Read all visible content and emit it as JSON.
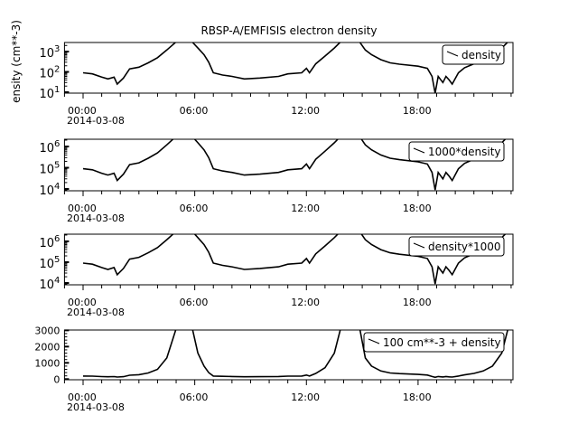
{
  "figure": {
    "title": "RBSP-A/EMFISIS  electron density",
    "ylabel_visible": "ensity (cm**-3)"
  },
  "chart_data": [
    {
      "type": "line",
      "yscale": "log",
      "ylim": [
        9,
        2800
      ],
      "xlim": [
        "-01:00",
        "23:06"
      ],
      "x_tick_labels": [
        "00:00",
        "06:00",
        "12:00",
        "18:00"
      ],
      "x_date_label": "2014-03-08",
      "y_tick_labels": [
        "10^1",
        "10^2",
        "10^3"
      ],
      "legend": {
        "position": "top-right",
        "label": "density"
      },
      "series": [
        {
          "name": "density",
          "x": [
            "00:00",
            "00:30",
            "01:00",
            "01:20",
            "01:40",
            "01:50",
            "02:10",
            "02:30",
            "03:00",
            "03:30",
            "04:00",
            "04:30",
            "05:00",
            "05:50",
            "06:10",
            "06:30",
            "06:45",
            "07:00",
            "07:30",
            "08:00",
            "08:40",
            "09:30",
            "10:30",
            "11:00",
            "11:45",
            "12:00",
            "12:10",
            "12:30",
            "13:00",
            "13:30",
            "13:50",
            "14:50",
            "15:10",
            "15:30",
            "16:00",
            "16:30",
            "17:00",
            "18:00",
            "18:30",
            "18:45",
            "18:55",
            "19:05",
            "19:20",
            "19:30",
            "19:40",
            "19:50",
            "20:10",
            "20:30",
            "21:00",
            "21:30",
            "22:00",
            "22:30",
            "22:50"
          ],
          "y": [
            90,
            80,
            55,
            45,
            55,
            25,
            50,
            140,
            170,
            280,
            500,
            1200,
            3000,
            3200,
            1500,
            700,
            300,
            90,
            70,
            60,
            45,
            50,
            60,
            80,
            90,
            150,
            90,
            250,
            600,
            1500,
            3000,
            3200,
            1200,
            700,
            400,
            280,
            240,
            190,
            150,
            60,
            9,
            60,
            30,
            60,
            40,
            25,
            90,
            160,
            250,
            400,
            700,
            1500,
            3000
          ]
        }
      ]
    },
    {
      "type": "line",
      "yscale": "log",
      "ylim": [
        8200,
        2200000
      ],
      "xlim": [
        "-01:00",
        "23:06"
      ],
      "x_tick_labels": [
        "00:00",
        "06:00",
        "12:00",
        "18:00"
      ],
      "x_date_label": "2014-03-08",
      "y_tick_labels": [
        "10^4",
        "10^5",
        "10^6"
      ],
      "legend": {
        "position": "top-right",
        "label": "1000*density"
      },
      "series": [
        {
          "name": "1000*density",
          "x": [
            "00:00",
            "00:30",
            "01:00",
            "01:20",
            "01:40",
            "01:50",
            "02:10",
            "02:30",
            "03:00",
            "03:30",
            "04:00",
            "04:30",
            "05:00",
            "05:50",
            "06:10",
            "06:30",
            "06:45",
            "07:00",
            "07:30",
            "08:00",
            "08:40",
            "09:30",
            "10:30",
            "11:00",
            "11:45",
            "12:00",
            "12:10",
            "12:30",
            "13:00",
            "13:30",
            "13:50",
            "14:50",
            "15:10",
            "15:30",
            "16:00",
            "16:30",
            "17:00",
            "18:00",
            "18:30",
            "18:45",
            "18:55",
            "19:05",
            "19:20",
            "19:30",
            "19:40",
            "19:50",
            "20:10",
            "20:30",
            "21:00",
            "21:30",
            "22:00",
            "22:30",
            "22:50"
          ],
          "y": [
            90000,
            80000,
            55000,
            45000,
            55000,
            25000,
            50000,
            140000,
            170000,
            280000,
            500000,
            1200000,
            3000000,
            3200000,
            1500000,
            700000,
            300000,
            90000,
            70000,
            60000,
            45000,
            50000,
            60000,
            80000,
            90000,
            150000,
            90000,
            250000,
            600000,
            1500000,
            3000000,
            3200000,
            1200000,
            700000,
            400000,
            280000,
            240000,
            190000,
            150000,
            60000,
            9000,
            60000,
            30000,
            60000,
            40000,
            25000,
            90000,
            160000,
            250000,
            400000,
            700000,
            1500000,
            3000000
          ]
        }
      ]
    },
    {
      "type": "line",
      "yscale": "log",
      "ylim": [
        8200,
        2200000
      ],
      "xlim": [
        "-01:00",
        "23:06"
      ],
      "x_tick_labels": [
        "00:00",
        "06:00",
        "12:00",
        "18:00"
      ],
      "x_date_label": "2014-03-08",
      "y_tick_labels": [
        "10^4",
        "10^5",
        "10^6"
      ],
      "legend": {
        "position": "top-right",
        "label": "density*1000"
      },
      "series": [
        {
          "name": "density*1000",
          "x": [
            "00:00",
            "00:30",
            "01:00",
            "01:20",
            "01:40",
            "01:50",
            "02:10",
            "02:30",
            "03:00",
            "03:30",
            "04:00",
            "04:30",
            "05:00",
            "05:50",
            "06:10",
            "06:30",
            "06:45",
            "07:00",
            "07:30",
            "08:00",
            "08:40",
            "09:30",
            "10:30",
            "11:00",
            "11:45",
            "12:00",
            "12:10",
            "12:30",
            "13:00",
            "13:30",
            "13:50",
            "14:50",
            "15:10",
            "15:30",
            "16:00",
            "16:30",
            "17:00",
            "18:00",
            "18:30",
            "18:45",
            "18:55",
            "19:05",
            "19:20",
            "19:30",
            "19:40",
            "19:50",
            "20:10",
            "20:30",
            "21:00",
            "21:30",
            "22:00",
            "22:30",
            "22:50"
          ],
          "y": [
            90000,
            80000,
            55000,
            45000,
            55000,
            25000,
            50000,
            140000,
            170000,
            280000,
            500000,
            1200000,
            3000000,
            3200000,
            1500000,
            700000,
            300000,
            90000,
            70000,
            60000,
            45000,
            50000,
            60000,
            80000,
            90000,
            150000,
            90000,
            250000,
            600000,
            1500000,
            3000000,
            3200000,
            1200000,
            700000,
            400000,
            280000,
            240000,
            190000,
            150000,
            60000,
            9000,
            60000,
            30000,
            60000,
            40000,
            25000,
            90000,
            160000,
            250000,
            400000,
            700000,
            1500000,
            3000000
          ]
        }
      ]
    },
    {
      "type": "line",
      "yscale": "linear",
      "ylim": [
        -40,
        3020
      ],
      "xlim": [
        "-01:00",
        "23:06"
      ],
      "x_tick_labels": [
        "00:00",
        "06:00",
        "12:00",
        "18:00"
      ],
      "x_date_label": "2014-03-08",
      "y_tick_labels": [
        "0",
        "1000",
        "2000",
        "3000"
      ],
      "legend": {
        "position": "top-right",
        "label": "100 cm**-3 + density"
      },
      "series": [
        {
          "name": "100 cm**-3 + density",
          "x": [
            "00:00",
            "00:30",
            "01:00",
            "01:20",
            "01:40",
            "01:50",
            "02:10",
            "02:30",
            "03:00",
            "03:30",
            "04:00",
            "04:30",
            "05:00",
            "05:50",
            "06:10",
            "06:30",
            "06:45",
            "07:00",
            "07:30",
            "08:00",
            "08:40",
            "09:30",
            "10:30",
            "11:00",
            "11:45",
            "12:00",
            "12:10",
            "12:30",
            "13:00",
            "13:30",
            "13:50",
            "14:50",
            "15:10",
            "15:30",
            "16:00",
            "16:30",
            "17:00",
            "18:00",
            "18:30",
            "18:45",
            "18:55",
            "19:05",
            "19:20",
            "19:30",
            "19:40",
            "19:50",
            "20:10",
            "20:30",
            "21:00",
            "21:30",
            "22:00",
            "22:30",
            "22:50"
          ],
          "y": [
            190,
            180,
            155,
            145,
            155,
            125,
            150,
            240,
            270,
            380,
            600,
            1300,
            3100,
            3300,
            1600,
            800,
            400,
            190,
            170,
            160,
            145,
            150,
            160,
            180,
            190,
            250,
            190,
            350,
            700,
            1600,
            3100,
            3300,
            1300,
            800,
            500,
            380,
            340,
            290,
            250,
            160,
            109,
            160,
            130,
            160,
            140,
            125,
            190,
            260,
            350,
            500,
            800,
            1600,
            3100
          ]
        }
      ]
    }
  ]
}
